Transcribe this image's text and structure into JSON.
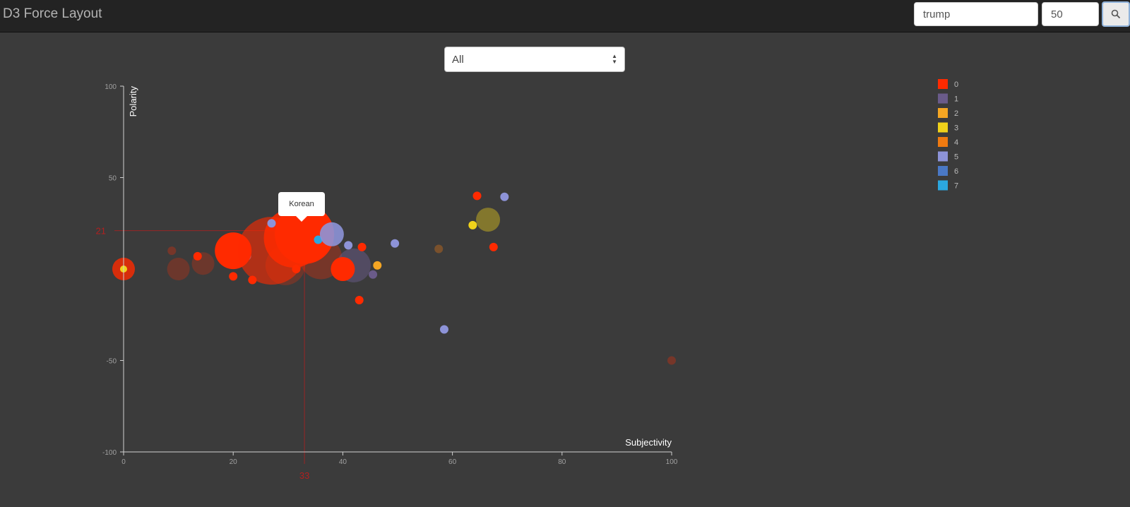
{
  "app": {
    "title": "D3 Force Layout"
  },
  "search": {
    "query": "trump",
    "count": "50",
    "button_icon": "search-icon"
  },
  "filter": {
    "selected": "All"
  },
  "tooltip": {
    "text": "Korean"
  },
  "colors": {
    "background": "#3b3b3b",
    "navbar": "#232323",
    "crosshair": "#b02020",
    "axis": "#d0d0d0"
  },
  "chart_data": {
    "type": "scatter",
    "xlabel": "Subjectivity",
    "ylabel": "Polarity",
    "xlim": [
      0,
      100
    ],
    "ylim": [
      -100,
      100
    ],
    "x_ticks": [
      0,
      20,
      40,
      60,
      80,
      100
    ],
    "y_ticks": [
      -100,
      -50,
      50,
      100
    ],
    "crosshair": {
      "x": 33,
      "y": 21,
      "x_label": "33",
      "y_label": "21"
    },
    "legend_placement": "top-right",
    "legend": [
      {
        "label": "0",
        "color": "#ff2a00"
      },
      {
        "label": "1",
        "color": "#6a5b8a"
      },
      {
        "label": "2",
        "color": "#f5a623"
      },
      {
        "label": "3",
        "color": "#f0d21a"
      },
      {
        "label": "4",
        "color": "#f07a10"
      },
      {
        "label": "5",
        "color": "#8d93d8"
      },
      {
        "label": "6",
        "color": "#4a78c5"
      },
      {
        "label": "7",
        "color": "#2ba7df"
      }
    ],
    "points": [
      {
        "x": 0,
        "y": 0,
        "group": 0,
        "size": 16,
        "opacity": 0.8
      },
      {
        "x": 0,
        "y": 0,
        "group": 3,
        "size": 5,
        "opacity": 1
      },
      {
        "x": 10,
        "y": 0,
        "group": 0,
        "size": 16,
        "opacity": 0.25
      },
      {
        "x": 14.5,
        "y": 3,
        "group": 0,
        "size": 16,
        "opacity": 0.25
      },
      {
        "x": 13.5,
        "y": 7,
        "group": 0,
        "size": 6,
        "opacity": 1
      },
      {
        "x": 8.8,
        "y": 10,
        "group": 0,
        "size": 6,
        "opacity": 0.3
      },
      {
        "x": 20,
        "y": -4,
        "group": 0,
        "size": 6,
        "opacity": 1
      },
      {
        "x": 23.5,
        "y": -6,
        "group": 0,
        "size": 6,
        "opacity": 1
      },
      {
        "x": 22.5,
        "y": 7,
        "group": 5,
        "size": 6,
        "opacity": 1
      },
      {
        "x": 20,
        "y": 10,
        "group": 0,
        "size": 26,
        "opacity": 1
      },
      {
        "x": 27,
        "y": 10,
        "group": 0,
        "size": 48,
        "opacity": 0.6
      },
      {
        "x": 29.5,
        "y": 2,
        "group": 0,
        "size": 28,
        "opacity": 0.25
      },
      {
        "x": 36,
        "y": 6,
        "group": 0,
        "size": 30,
        "opacity": 0.3
      },
      {
        "x": 31,
        "y": 17,
        "group": 0,
        "size": 42,
        "opacity": 0.85
      },
      {
        "x": 33,
        "y": 19,
        "group": 0,
        "size": 42,
        "opacity": 1
      },
      {
        "x": 31.5,
        "y": 0,
        "group": 0,
        "size": 6,
        "opacity": 1
      },
      {
        "x": 27,
        "y": 25,
        "group": 5,
        "size": 6,
        "opacity": 1
      },
      {
        "x": 35.5,
        "y": 16,
        "group": 7,
        "size": 6,
        "opacity": 1
      },
      {
        "x": 38,
        "y": 19,
        "group": 5,
        "size": 17,
        "opacity": 0.9
      },
      {
        "x": 42,
        "y": 2,
        "group": 1,
        "size": 24,
        "opacity": 0.5
      },
      {
        "x": 40,
        "y": 0,
        "group": 0,
        "size": 17,
        "opacity": 1
      },
      {
        "x": 41,
        "y": 13,
        "group": 5,
        "size": 6,
        "opacity": 1
      },
      {
        "x": 43.5,
        "y": 12,
        "group": 0,
        "size": 6,
        "opacity": 1
      },
      {
        "x": 46.3,
        "y": 2,
        "group": 2,
        "size": 6,
        "opacity": 1
      },
      {
        "x": 45.5,
        "y": -3,
        "group": 1,
        "size": 6,
        "opacity": 1
      },
      {
        "x": 43,
        "y": -17,
        "group": 0,
        "size": 6,
        "opacity": 1
      },
      {
        "x": 49.5,
        "y": 14,
        "group": 5,
        "size": 6,
        "opacity": 1
      },
      {
        "x": 57.5,
        "y": 11,
        "group": 4,
        "size": 6,
        "opacity": 0.35
      },
      {
        "x": 58.5,
        "y": -33,
        "group": 5,
        "size": 6,
        "opacity": 1
      },
      {
        "x": 64.5,
        "y": 40,
        "group": 0,
        "size": 6,
        "opacity": 1
      },
      {
        "x": 69.5,
        "y": 39.5,
        "group": 5,
        "size": 6,
        "opacity": 1
      },
      {
        "x": 66.5,
        "y": 27,
        "group": 3,
        "size": 17,
        "opacity": 0.4
      },
      {
        "x": 63.7,
        "y": 24,
        "group": 3,
        "size": 6,
        "opacity": 1
      },
      {
        "x": 67.5,
        "y": 12,
        "group": 0,
        "size": 6,
        "opacity": 1
      },
      {
        "x": 100,
        "y": -50,
        "group": 0,
        "size": 6,
        "opacity": 0.3
      }
    ]
  }
}
